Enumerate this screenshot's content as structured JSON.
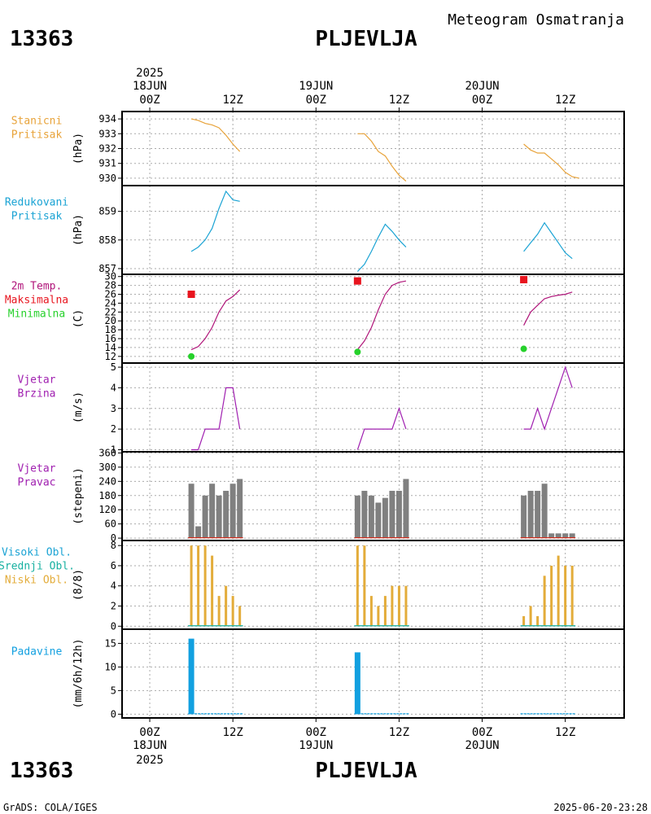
{
  "header": {
    "station_id": "13363",
    "station_name": "PLJEVLJA",
    "subtitle": "Meteogram Osmatranja"
  },
  "footer": {
    "station_id": "13363",
    "station_name": "PLJEVLJA",
    "credits": "GrADS: COLA/IGES",
    "generated": "2025-06-20-23:28"
  },
  "colors": {
    "pressure_station": "#e8a33a",
    "pressure_reduced": "#1aa3d4",
    "temp_line": "#b0157a",
    "temp_max": "#e8141e",
    "temp_min": "#26d12b",
    "wind": "#a020b0",
    "wind_bar": "#808080",
    "wind_base": "#d03020",
    "cloud_low": "#e3ac3a",
    "cloud_label_high": "#1aa3d4",
    "cloud_label_mid": "#16b0a0",
    "precip": "#12a0e0",
    "grid": "#aaaaaa"
  },
  "time_axis": {
    "top_labels": [
      {
        "hour": 0,
        "line1": "2025",
        "line2": "18JUN",
        "line3": "00Z"
      },
      {
        "hour": 12,
        "line1": "",
        "line2": "",
        "line3": "12Z"
      },
      {
        "hour": 24,
        "line1": "",
        "line2": "19JUN",
        "line3": "00Z"
      },
      {
        "hour": 36,
        "line1": "",
        "line2": "",
        "line3": "12Z"
      },
      {
        "hour": 48,
        "line1": "",
        "line2": "20JUN",
        "line3": "00Z"
      },
      {
        "hour": 60,
        "line1": "",
        "line2": "",
        "line3": "12Z"
      }
    ],
    "bottom_labels": [
      {
        "hour": 0,
        "line1": "00Z",
        "line2": "18JUN",
        "line3": "2025"
      },
      {
        "hour": 12,
        "line1": "12Z",
        "line2": "",
        "line3": ""
      },
      {
        "hour": 24,
        "line1": "00Z",
        "line2": "19JUN",
        "line3": ""
      },
      {
        "hour": 36,
        "line1": "12Z",
        "line2": "",
        "line3": ""
      },
      {
        "hour": 48,
        "line1": "00Z",
        "line2": "20JUN",
        "line3": ""
      },
      {
        "hour": 60,
        "line1": "12Z",
        "line2": "",
        "line3": ""
      }
    ]
  },
  "chart_data": [
    {
      "type": "line",
      "id": "station_pressure",
      "title": "Stanicni Pritisak",
      "labels": [
        "Stanicni",
        "Pritisak"
      ],
      "ylabel": "(hPa)",
      "ylim": [
        929.5,
        934.5
      ],
      "yticks": [
        930,
        931,
        932,
        933,
        934
      ],
      "series": [
        {
          "name": "Stanicni Pritisak",
          "segments": [
            [
              [
                6,
                934.0
              ],
              [
                7,
                933.9
              ],
              [
                8,
                933.7
              ],
              [
                9,
                933.6
              ],
              [
                10,
                933.4
              ],
              [
                11,
                932.9
              ],
              [
                12,
                932.3
              ],
              [
                13,
                931.8
              ]
            ],
            [
              [
                30,
                933.0
              ],
              [
                31,
                933.0
              ],
              [
                32,
                932.5
              ],
              [
                33,
                931.8
              ],
              [
                34,
                931.5
              ],
              [
                35,
                930.8
              ],
              [
                36,
                930.2
              ],
              [
                37,
                929.8
              ]
            ],
            [
              [
                54,
                932.3
              ],
              [
                55,
                931.9
              ],
              [
                56,
                931.7
              ],
              [
                57,
                931.7
              ],
              [
                58,
                931.3
              ],
              [
                59,
                930.9
              ],
              [
                60,
                930.4
              ],
              [
                61,
                930.1
              ],
              [
                62,
                930.0
              ]
            ]
          ]
        }
      ]
    },
    {
      "type": "line",
      "id": "reduced_pressure",
      "title": "Redukovani Pritisak",
      "labels": [
        "Redukovani",
        "Pritisak"
      ],
      "ylabel": "(hPa)",
      "ylim": [
        856.8,
        859.9
      ],
      "yticks": [
        857,
        858,
        859
      ],
      "series": [
        {
          "name": "Redukovani Pritisak",
          "segments": [
            [
              [
                6,
                857.6
              ],
              [
                7,
                857.75
              ],
              [
                8,
                858.0
              ],
              [
                9,
                858.4
              ],
              [
                10,
                859.1
              ],
              [
                11,
                859.7
              ],
              [
                12,
                859.4
              ],
              [
                13,
                859.35
              ]
            ],
            [
              [
                30,
                856.9
              ],
              [
                31,
                857.15
              ],
              [
                32,
                857.6
              ],
              [
                33,
                858.1
              ],
              [
                34,
                858.55
              ],
              [
                35,
                858.3
              ],
              [
                36,
                858.0
              ],
              [
                37,
                857.75
              ]
            ],
            [
              [
                54,
                857.6
              ],
              [
                55,
                857.9
              ],
              [
                56,
                858.2
              ],
              [
                57,
                858.6
              ],
              [
                58,
                858.25
              ],
              [
                59,
                857.9
              ],
              [
                60,
                857.55
              ],
              [
                61,
                857.35
              ]
            ]
          ]
        }
      ]
    },
    {
      "type": "line",
      "id": "temperature",
      "title": "2m Temp. Maksimalna Minimalna",
      "labels": [
        "2m Temp.",
        "Maksimalna",
        "Minimalna"
      ],
      "ylabel": "(C)",
      "ylim": [
        10.5,
        30.5
      ],
      "yticks": [
        12,
        14,
        16,
        18,
        20,
        22,
        24,
        26,
        28,
        30
      ],
      "series": [
        {
          "name": "2m Temp.",
          "segments": [
            [
              [
                6,
                13.5
              ],
              [
                7,
                14.2
              ],
              [
                8,
                16.0
              ],
              [
                9,
                18.5
              ],
              [
                10,
                22.0
              ],
              [
                11,
                24.5
              ],
              [
                12,
                25.5
              ],
              [
                13,
                27.0
              ]
            ],
            [
              [
                30,
                13.5
              ],
              [
                31,
                15.5
              ],
              [
                32,
                18.5
              ],
              [
                33,
                22.5
              ],
              [
                34,
                26.0
              ],
              [
                35,
                28.0
              ],
              [
                36,
                28.7
              ],
              [
                37,
                29.0
              ]
            ],
            [
              [
                54,
                19.0
              ],
              [
                55,
                22.0
              ],
              [
                56,
                23.5
              ],
              [
                57,
                25.0
              ],
              [
                58,
                25.5
              ],
              [
                59,
                25.8
              ],
              [
                60,
                26.0
              ],
              [
                61,
                26.5
              ]
            ]
          ]
        }
      ],
      "max_points": [
        [
          6,
          26.0
        ],
        [
          30,
          29.0
        ],
        [
          54,
          29.3
        ]
      ],
      "min_points": [
        [
          6,
          12.0
        ],
        [
          30,
          13.0
        ],
        [
          54,
          13.7
        ]
      ]
    },
    {
      "type": "line",
      "id": "wind_speed",
      "title": "Vjetar Brzina",
      "labels": [
        "Vjetar",
        "Brzina"
      ],
      "ylabel": "(m/s)",
      "ylim": [
        0.9,
        5.2
      ],
      "yticks": [
        1,
        2,
        3,
        4,
        5
      ],
      "series": [
        {
          "name": "Vjetar Brzina",
          "segments": [
            [
              [
                6,
                1
              ],
              [
                7,
                1
              ],
              [
                8,
                2
              ],
              [
                9,
                2
              ],
              [
                10,
                2
              ],
              [
                11,
                4
              ],
              [
                12,
                4
              ],
              [
                13,
                2
              ]
            ],
            [
              [
                30,
                1
              ],
              [
                31,
                2
              ],
              [
                32,
                2
              ],
              [
                33,
                2
              ],
              [
                34,
                2
              ],
              [
                35,
                2
              ],
              [
                36,
                3
              ],
              [
                37,
                2
              ]
            ],
            [
              [
                54,
                2
              ],
              [
                55,
                2
              ],
              [
                56,
                3
              ],
              [
                57,
                2
              ],
              [
                58,
                3
              ],
              [
                59,
                4
              ],
              [
                60,
                5
              ],
              [
                61,
                4
              ]
            ]
          ]
        }
      ]
    },
    {
      "type": "bar",
      "id": "wind_direction",
      "title": "Vjetar Pravac",
      "labels": [
        "Vjetar",
        "Pravac"
      ],
      "ylabel": "(stepeni)",
      "ylim": [
        -10,
        365
      ],
      "yticks": [
        0,
        60,
        120,
        180,
        240,
        300,
        360
      ],
      "x": [
        6,
        7,
        8,
        9,
        10,
        11,
        12,
        13,
        30,
        31,
        32,
        33,
        34,
        35,
        36,
        37,
        54,
        55,
        56,
        57,
        58,
        59,
        60,
        61
      ],
      "values": [
        230,
        50,
        180,
        230,
        180,
        200,
        230,
        250,
        180,
        200,
        180,
        150,
        170,
        200,
        200,
        250,
        180,
        200,
        200,
        230,
        20,
        20,
        20,
        20
      ]
    },
    {
      "type": "bar",
      "id": "clouds",
      "title": "Visoki Obl. Srednji Obl. Niski Obl.",
      "labels": [
        "Visoki Obl.",
        "Srednji Obl.",
        "Niski Obl."
      ],
      "ylabel": "(8/8)",
      "ylim": [
        -0.3,
        8.5
      ],
      "yticks": [
        0,
        2,
        4,
        6,
        8
      ],
      "x": [
        6,
        7,
        8,
        9,
        10,
        11,
        12,
        13,
        30,
        31,
        32,
        33,
        34,
        35,
        36,
        37,
        54,
        55,
        56,
        57,
        58,
        59,
        60,
        61
      ],
      "values": [
        8,
        8,
        8,
        7,
        3,
        4,
        3,
        2,
        8,
        8,
        3,
        2,
        3,
        4,
        4,
        4,
        1,
        2,
        1,
        5,
        6,
        7,
        6,
        6
      ]
    },
    {
      "type": "bar",
      "id": "precipitation",
      "title": "Padavine",
      "labels": [
        "Padavine"
      ],
      "ylabel": "(mm/6h/12h)",
      "ylim": [
        -0.8,
        18
      ],
      "yticks": [
        0,
        5,
        10,
        15
      ],
      "x": [
        6,
        30,
        54
      ],
      "values": [
        16.0,
        13.1,
        0
      ]
    }
  ]
}
